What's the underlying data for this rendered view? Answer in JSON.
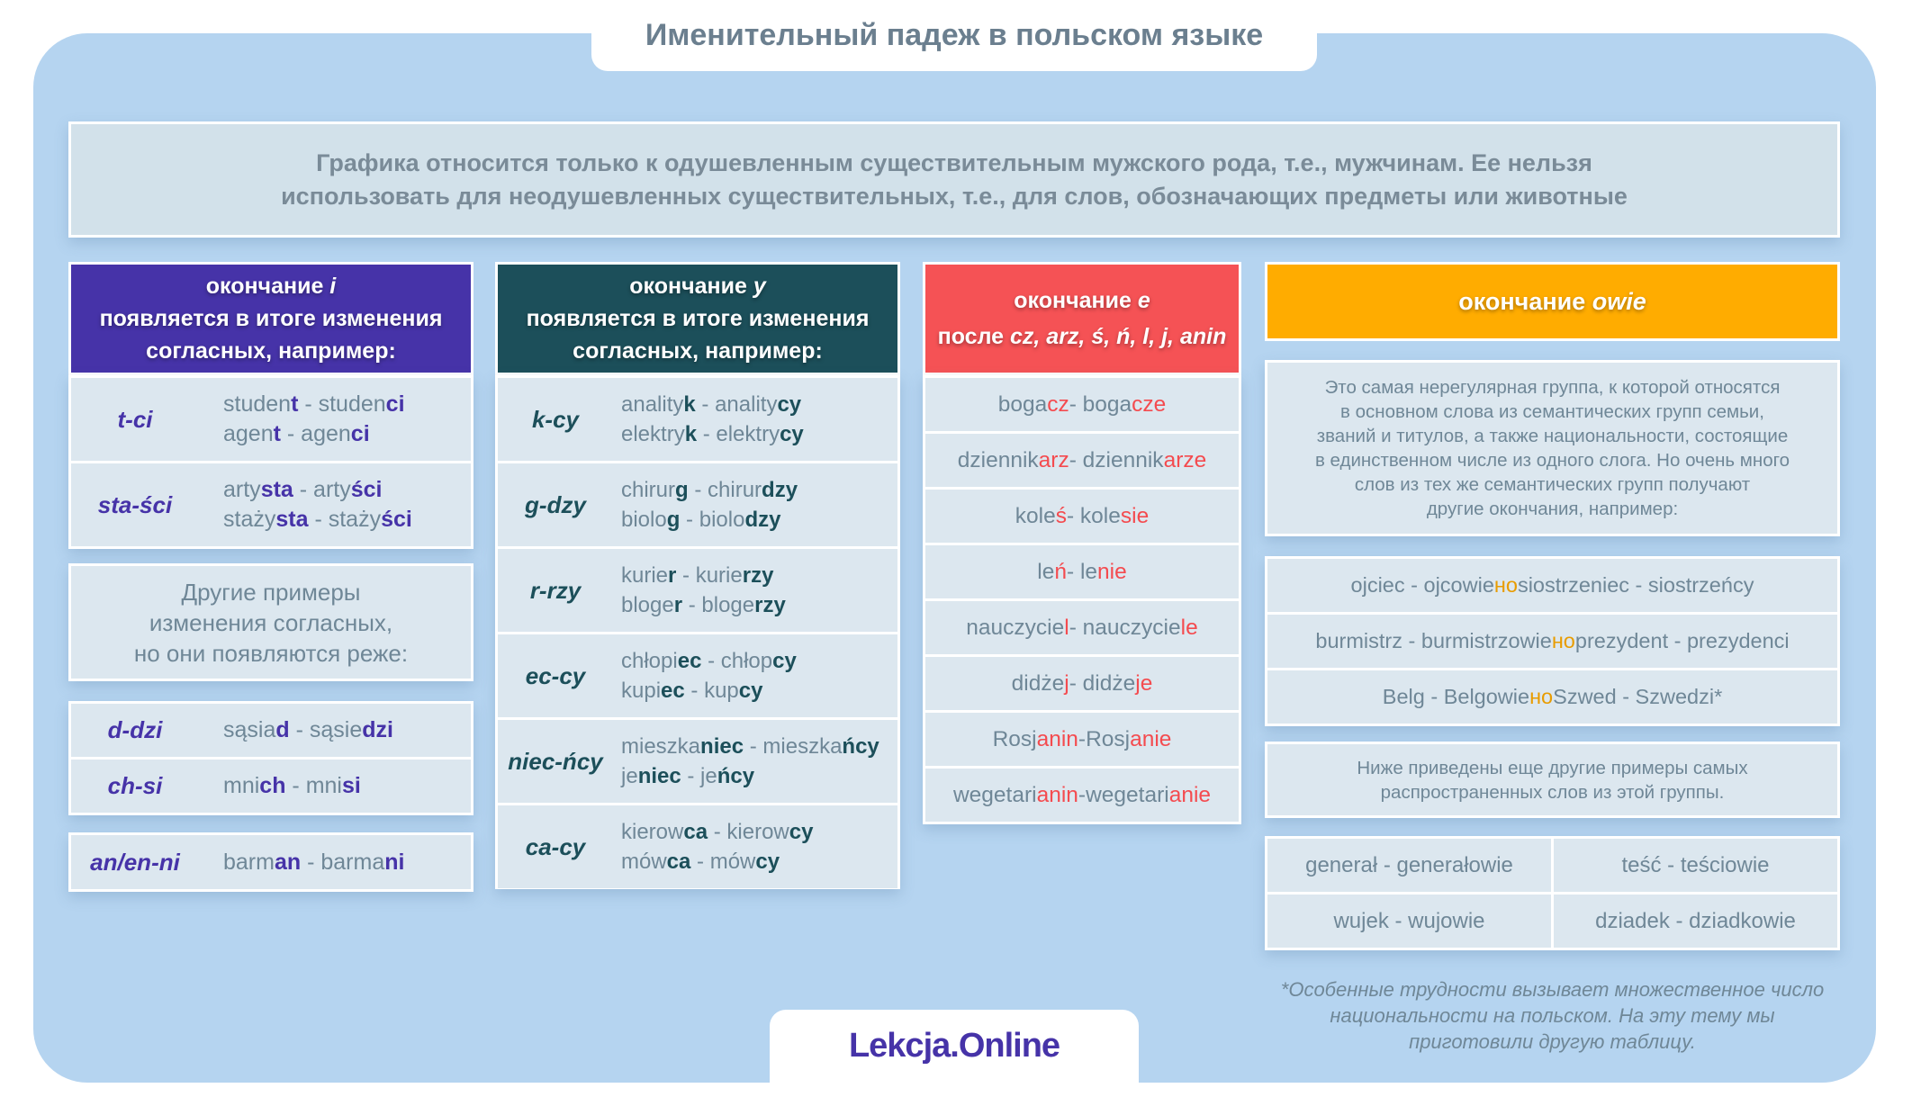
{
  "title": "Именительный падеж в польском языке",
  "note": [
    "Графика относится только к одушевленным существительным мужского рода, т.е., мужчинам. Ее нельзя",
    "использовать для неодушевленных существительных, т.е., для слов, обозначающих предметы или животные"
  ],
  "colors": {
    "background": "#b5d4f0",
    "cell": "#dce7ef",
    "text": "#6f8797",
    "purple": "#4633a8",
    "teal": "#1c4f5a",
    "red": "#f44b4f",
    "orange": "#ffac00",
    "orange_text": "#e89c00"
  },
  "col_i": {
    "header": {
      "prefix": "окончание ",
      "italic": "i",
      "sub1": "появляется в итоге изменения",
      "sub2": "согласных, например:"
    },
    "rows": [
      {
        "key": "t-ci",
        "lines": [
          [
            "studen",
            "t",
            " - studen",
            "ci"
          ],
          [
            "agen",
            "t",
            " - agen",
            "ci"
          ]
        ]
      },
      {
        "key": "sta-ści",
        "lines": [
          [
            "arty",
            "sta",
            " - arty",
            "ści"
          ],
          [
            "staży",
            "sta",
            " - staży",
            "ści"
          ]
        ]
      }
    ],
    "other": [
      "Другие примеры",
      "изменения согласных,",
      "но они появляются реже:"
    ],
    "rare_rows": [
      {
        "key": "d-dzi",
        "lines": [
          [
            "sąsia",
            "d",
            " - sąsie",
            "dzi"
          ]
        ]
      },
      {
        "key": "ch-si",
        "lines": [
          [
            "mni",
            "ch",
            " - mni",
            "si"
          ]
        ]
      }
    ],
    "last_rows": [
      {
        "key": "an/en-ni",
        "lines": [
          [
            "barm",
            "an",
            " - barma",
            "ni"
          ]
        ]
      }
    ]
  },
  "col_y": {
    "header": {
      "prefix": "окончание ",
      "italic": "y",
      "sub1": "появляется в итоге изменения",
      "sub2": "согласных, например:"
    },
    "rows": [
      {
        "key": "k-cy",
        "lines": [
          [
            "anality",
            "k",
            " - anality",
            "cy"
          ],
          [
            "elektry",
            "k",
            " - elektry",
            "cy"
          ]
        ]
      },
      {
        "key": "g-dzy",
        "lines": [
          [
            "chirur",
            "g",
            " - chirur",
            "dzy"
          ],
          [
            "biolo",
            "g",
            " - biolo",
            "dzy"
          ]
        ]
      },
      {
        "key": "r-rzy",
        "lines": [
          [
            "kurie",
            "r",
            " - kurie",
            "rzy"
          ],
          [
            "bloge",
            "r",
            " - bloge",
            "rzy"
          ]
        ]
      },
      {
        "key": "ec-cy",
        "lines": [
          [
            "chłopi",
            "ec",
            " - chłop",
            "cy"
          ],
          [
            "kupi",
            "ec",
            " - kup",
            "cy"
          ]
        ]
      },
      {
        "key": "niec-ńcy",
        "lines": [
          [
            "mieszka",
            "niec",
            " - mieszka",
            "ńcy"
          ],
          [
            "je",
            "niec",
            " - je",
            "ńcy"
          ]
        ]
      },
      {
        "key": "ca-cy",
        "lines": [
          [
            "kierow",
            "ca",
            " - kierow",
            "cy"
          ],
          [
            "mów",
            "ca",
            " - mów",
            "cy"
          ]
        ]
      }
    ]
  },
  "col_e": {
    "header": {
      "prefix": "окончание ",
      "italic": "e",
      "sub_prefix": "после ",
      "sub_italic": "cz, arz, ś, ń, l, j, anin"
    },
    "rows": [
      [
        "boga",
        "cz",
        " - boga",
        "cze"
      ],
      [
        "dziennik",
        "arz",
        " - dziennik",
        "arze"
      ],
      [
        "kole",
        "ś",
        " - kole",
        "sie"
      ],
      [
        "le",
        "ń",
        " - le",
        "nie"
      ],
      [
        "nauczycie",
        "l",
        " - nauczycie",
        "le"
      ],
      [
        "didże",
        "j",
        " - didże",
        "je"
      ],
      [
        "Rosj",
        "anin",
        "-Rosj",
        "anie"
      ],
      [
        "wegetari",
        "anin",
        "-wegetari",
        "anie"
      ]
    ]
  },
  "col_owie": {
    "header": {
      "prefix": "окончание ",
      "italic": "owie"
    },
    "description": [
      "Это самая нерегулярная группа, к которой относятся",
      "в основном слова из семантических групп семьи,",
      "званий и титулов, а также национальности, состоящие",
      "в единственном числе из одного слога. Но очень много",
      "слов из тех же семантических групп получают",
      "другие окончания, например:"
    ],
    "examples": [
      [
        "ojciec - ojcowie ",
        "но",
        " siostrzeniec - siostrzeńcy"
      ],
      [
        "burmistrz - burmistrzowie ",
        "но",
        " prezydent - prezydenci"
      ],
      [
        "Belg - Belgowie ",
        "но",
        " Szwed - Szwedzi*"
      ]
    ],
    "more_note": [
      "Ниже приведены еще другие примеры самых",
      "распространенных слов из этой группы."
    ],
    "grid": [
      [
        "generał - generałowie",
        "teść - teściowie"
      ],
      [
        "wujek - wujowie",
        "dziadek - dziadkowie"
      ]
    ]
  },
  "footnote": [
    "*Особенные трудности вызывает множественное число",
    "национальности на польском. На эту тему мы",
    "приготовили другую таблицу."
  ],
  "logo": "Lekcja.Online"
}
